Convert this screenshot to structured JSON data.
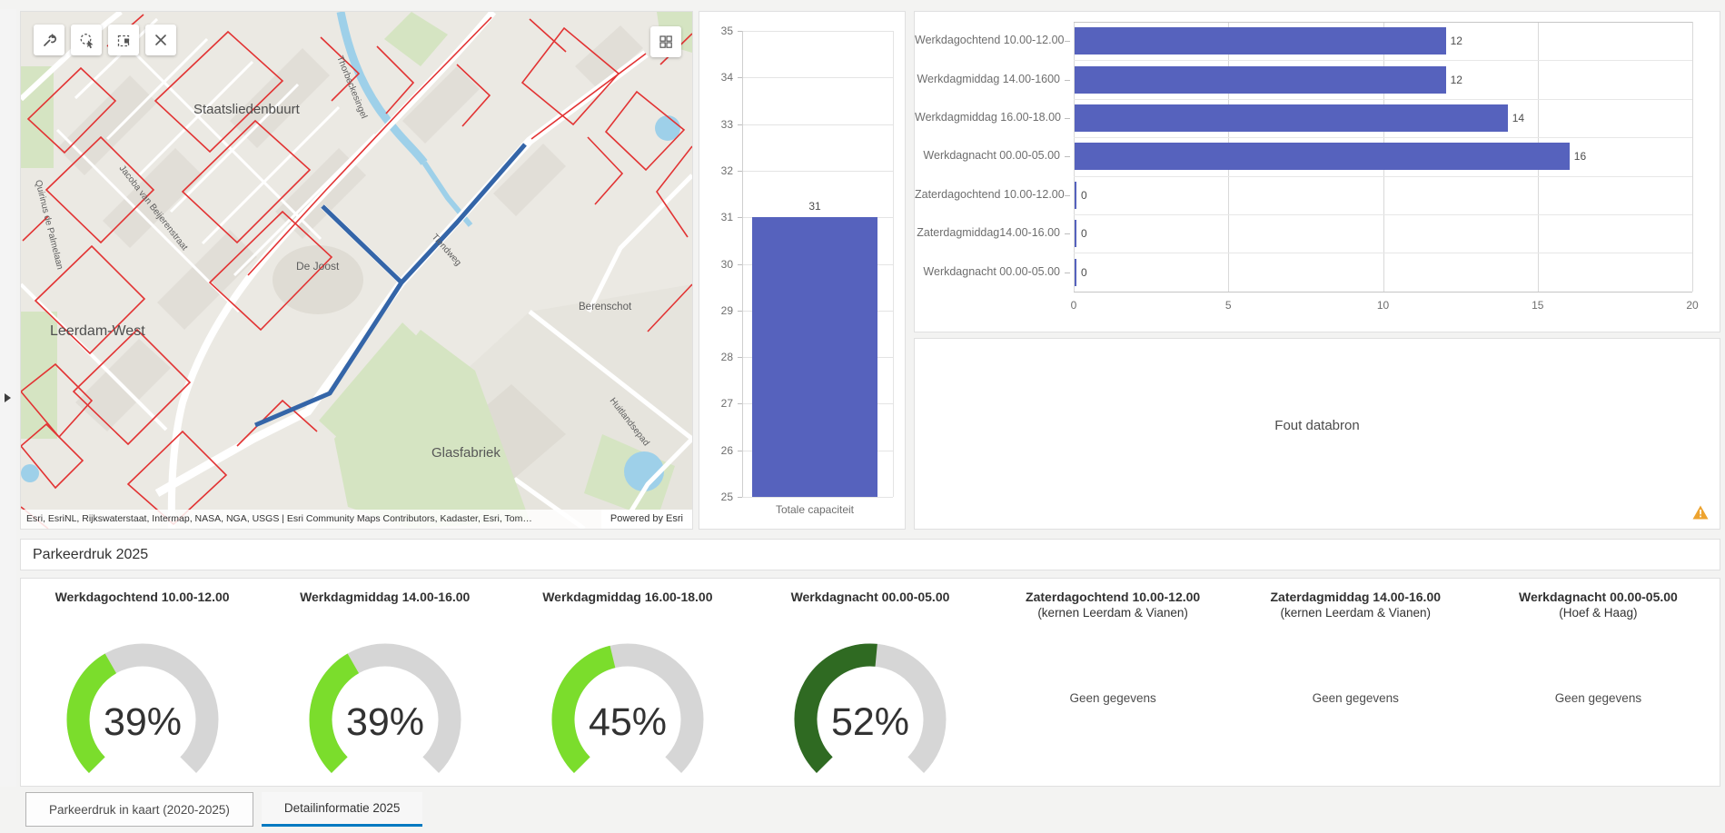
{
  "map": {
    "toolbar": {
      "tool_button": "tools",
      "lasso_select_button": "select by lasso",
      "box_select_button": "select by rectangle",
      "clear_button": "clear selection"
    },
    "attribution": "Esri, EsriNL, Rijkswaterstaat, Intermap, NASA, NGA, USGS | Esri Community Maps Contributors, Kadaster, Esri, Tom…",
    "powered_by": "Powered by Esri",
    "labels": {
      "district1": "Staatsliedenbuurt",
      "district2": "Leerdam-West",
      "place1": "De Joost",
      "place2": "Berenschot",
      "area1": "Glasfabriek",
      "street1": "Thorbeckesingel",
      "street2": "Jacoba van Beijerenstraat",
      "street3": "Quirinus de Palmelaan",
      "street4": "Tiendweg",
      "street5": "Huitlandsepad"
    },
    "colors": {
      "selection_line": "#3465a8",
      "zone_outline": "#e23333",
      "water": "#9ed0e9",
      "green_area": "#d5e4c2",
      "road": "#ffffff",
      "base": "#ebe9e3"
    }
  },
  "chart_data": [
    {
      "id": "totale-capaciteit",
      "type": "bar",
      "orientation": "vertical",
      "title": "",
      "categories": [
        "Totale capaciteit"
      ],
      "values": [
        31
      ],
      "ylim": [
        25,
        35
      ],
      "yticks": [
        25,
        26,
        27,
        28,
        29,
        30,
        31,
        32,
        33,
        34,
        35
      ],
      "bar_color": "#5662bd",
      "grid": true,
      "value_labels": true
    },
    {
      "id": "dagdelen",
      "type": "bar",
      "orientation": "horizontal",
      "title": "",
      "categories": [
        "Werkdagochtend 10.00-12.00",
        "Werkdagmiddag 14.00-1600",
        "Werkdagmiddag 16.00-18.00",
        "Werkdagnacht 00.00-05.00",
        "Zaterdagochtend 10.00-12.00",
        "Zaterdagmiddag14.00-16.00",
        "Werkdagnacht 00.00-05.00"
      ],
      "values": [
        12,
        12,
        14,
        16,
        0,
        0,
        0
      ],
      "xlim": [
        0,
        20
      ],
      "xticks": [
        0,
        5,
        10,
        15,
        20
      ],
      "bar_color": "#5662bd",
      "grid": true,
      "value_labels": true
    }
  ],
  "error_panel": {
    "message": "Fout databron",
    "warning_color": "#eda32f"
  },
  "section_header": {
    "title": "Parkeerdruk 2025"
  },
  "gauges": {
    "track_color": "#d6d6d6",
    "no_data_text": "Geen gegevens",
    "items": [
      {
        "title": "Werkdagochtend 10.00-12.00",
        "subtitle": "",
        "value": 39,
        "label": "39%",
        "color": "#7bdd2c"
      },
      {
        "title": "Werkdagmiddag 14.00-16.00",
        "subtitle": "",
        "value": 39,
        "label": "39%",
        "color": "#7bdd2c"
      },
      {
        "title": "Werkdagmiddag 16.00-18.00",
        "subtitle": "",
        "value": 45,
        "label": "45%",
        "color": "#7bdd2c"
      },
      {
        "title": "Werkdagnacht 00.00-05.00",
        "subtitle": "",
        "value": 52,
        "label": "52%",
        "color": "#2f6a22"
      },
      {
        "title": "Zaterdagochtend 10.00-12.00",
        "subtitle": "(kernen Leerdam & Vianen)",
        "value": null,
        "label": "Geen gegevens",
        "color": null
      },
      {
        "title": "Zaterdagmiddag 14.00-16.00",
        "subtitle": "(kernen Leerdam & Vianen)",
        "value": null,
        "label": "Geen gegevens",
        "color": null
      },
      {
        "title": "Werkdagnacht 00.00-05.00",
        "subtitle": "(Hoef & Haag)",
        "value": null,
        "label": "Geen gegevens",
        "color": null
      }
    ]
  },
  "tabs": [
    {
      "label": "Parkeerdruk in kaart (2020-2025)",
      "active": false
    },
    {
      "label": "Detailinformatie 2025",
      "active": true
    }
  ],
  "accent": {
    "tab_underline": "#0079c1"
  }
}
